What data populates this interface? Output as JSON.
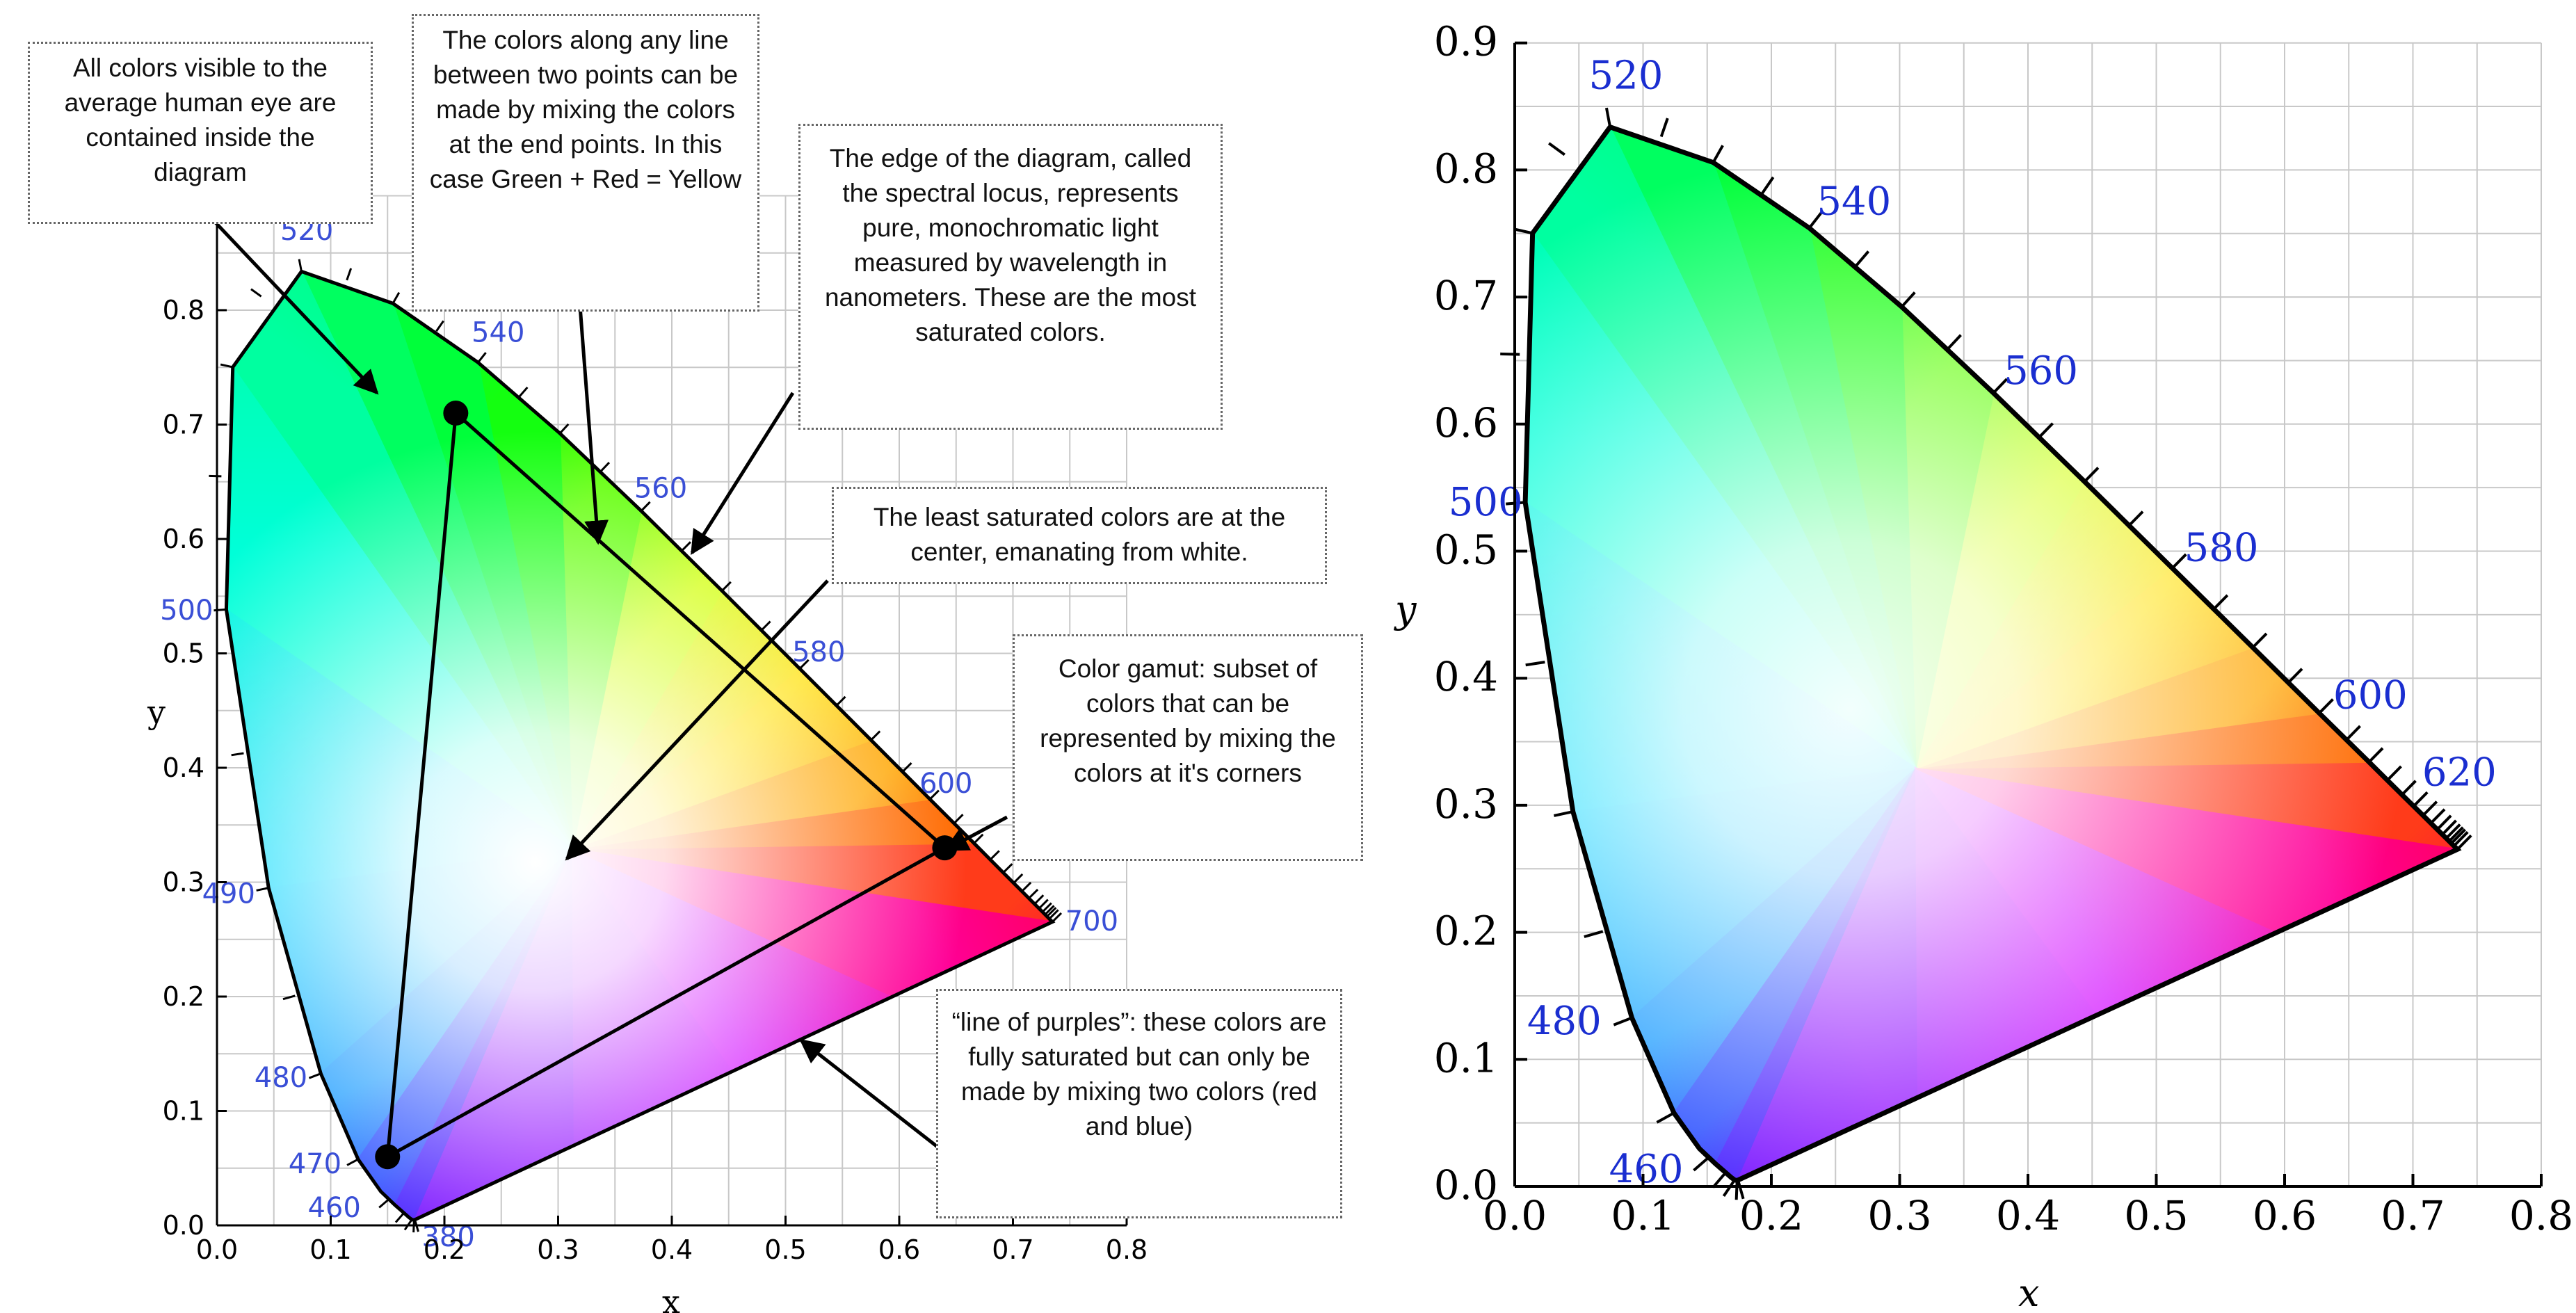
{
  "colors": {
    "wavelength_label": "#3a4fd6",
    "wavelength_label_right": "#1a2ed0",
    "grid": "#c8c8c8",
    "callout_border": "#666666",
    "markers": "#000000"
  },
  "left_diagram": {
    "x_axis": {
      "title": "x",
      "ticks": [
        "0.0",
        "0.1",
        "0.2",
        "0.3",
        "0.4",
        "0.5",
        "0.6",
        "0.7",
        "0.8"
      ]
    },
    "y_axis": {
      "title": "y",
      "ticks": [
        "0.0",
        "0.1",
        "0.2",
        "0.3",
        "0.4",
        "0.5",
        "0.6",
        "0.7",
        "0.8"
      ]
    },
    "wavelength_labels": [
      {
        "text": "520",
        "x": 0.074,
        "y": 0.834
      },
      {
        "text": "540",
        "x": 0.23,
        "y": 0.754
      },
      {
        "text": "560",
        "x": 0.373,
        "y": 0.624
      },
      {
        "text": "580",
        "x": 0.512,
        "y": 0.487
      },
      {
        "text": "600",
        "x": 0.627,
        "y": 0.372
      },
      {
        "text": "700",
        "x": 0.735,
        "y": 0.265
      },
      {
        "text": "500",
        "x": 0.008,
        "y": 0.538
      },
      {
        "text": "490",
        "x": 0.045,
        "y": 0.295
      },
      {
        "text": "480",
        "x": 0.091,
        "y": 0.133
      },
      {
        "text": "470",
        "x": 0.124,
        "y": 0.059
      },
      {
        "text": "460",
        "x": 0.144,
        "y": 0.023
      },
      {
        "text": "380",
        "x": 0.174,
        "y": 0.005
      }
    ],
    "gamut_triangle": [
      {
        "x": 0.21,
        "y": 0.71
      },
      {
        "x": 0.64,
        "y": 0.33
      },
      {
        "x": 0.15,
        "y": 0.06
      }
    ],
    "callouts": {
      "visible_colors": "All colors visible to the average human eye are contained inside the diagram",
      "mixing_line": "The colors along any line between two points can be made by mixing the colors at the end points. In this case Green + Red = Yellow",
      "spectral_locus": "The edge of the diagram, called the spectral locus, represents pure, monochromatic light measured by wavelength in nanometers. These are the most saturated colors.",
      "least_saturated": "The least saturated colors are at the center, emanating from white.",
      "gamut": "Color gamut: subset of colors that can be represented by mixing the colors at it's corners",
      "line_of_purples": "“line of purples”: these colors are fully saturated but can only be made by mixing two colors (red and blue)"
    }
  },
  "right_diagram": {
    "x_axis": {
      "title": "x",
      "ticks": [
        "0.0",
        "0.1",
        "0.2",
        "0.3",
        "0.4",
        "0.5",
        "0.6",
        "0.7",
        "0.8"
      ]
    },
    "y_axis": {
      "title": "y",
      "ticks": [
        "0.0",
        "0.1",
        "0.2",
        "0.3",
        "0.4",
        "0.5",
        "0.6",
        "0.7",
        "0.8",
        "0.9"
      ]
    },
    "wavelength_labels": [
      {
        "text": "520",
        "x": 0.074,
        "y": 0.834
      },
      {
        "text": "540",
        "x": 0.23,
        "y": 0.754
      },
      {
        "text": "560",
        "x": 0.373,
        "y": 0.624
      },
      {
        "text": "580",
        "x": 0.512,
        "y": 0.487
      },
      {
        "text": "600",
        "x": 0.627,
        "y": 0.372
      },
      {
        "text": "620",
        "x": 0.691,
        "y": 0.308
      },
      {
        "text": "500",
        "x": 0.008,
        "y": 0.538
      },
      {
        "text": "480",
        "x": 0.091,
        "y": 0.133
      },
      {
        "text": "460",
        "x": 0.144,
        "y": 0.023
      }
    ]
  }
}
